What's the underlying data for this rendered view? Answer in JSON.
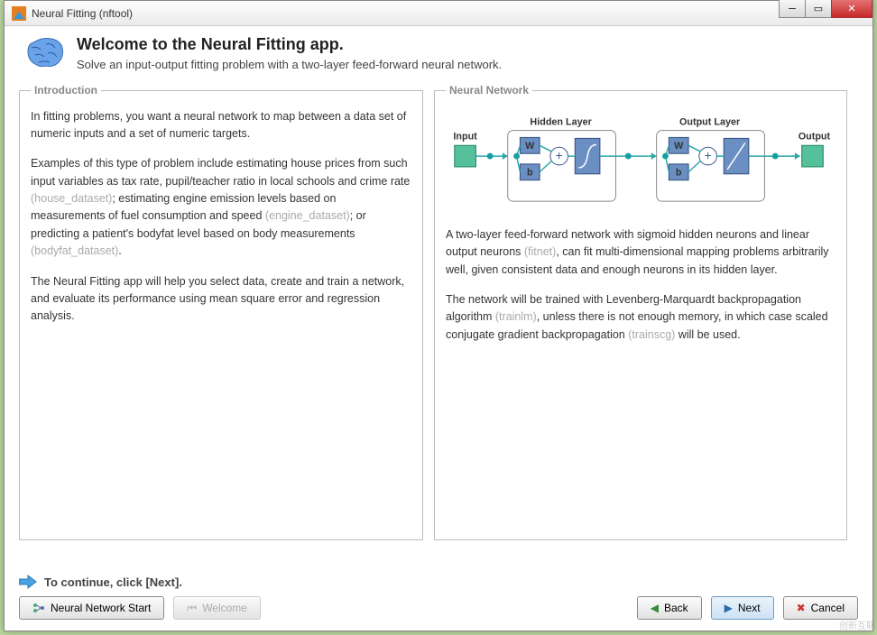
{
  "window": {
    "title": "Neural Fitting (nftool)"
  },
  "header": {
    "title": "Welcome to the Neural Fitting app.",
    "subtitle": "Solve an input-output fitting problem with a two-layer feed-forward neural network."
  },
  "intro": {
    "legend": "Introduction",
    "p1": "In fitting problems, you want a neural network to map between a data set of numeric inputs and a set of numeric targets.",
    "p2a": "Examples of this type of problem include estimating house prices from such input variables as tax rate, pupil/teacher ratio in local schools and crime rate ",
    "p2a_link": "(house_dataset)",
    "p2b": "; estimating engine emission levels based on measurements of fuel consumption and speed ",
    "p2b_link": "(engine_dataset)",
    "p2c": "; or predicting a patient's bodyfat level based on body measurements ",
    "p2c_link": "(bodyfat_dataset)",
    "p2d": ".",
    "p3": "The Neural Fitting app will help you select data, create and train a network, and evaluate its performance using mean square error and regression analysis."
  },
  "nn": {
    "legend": "Neural Network",
    "diagram": {
      "labels": {
        "input": "Input",
        "hidden": "Hidden Layer",
        "output_layer": "Output Layer",
        "output": "Output",
        "W": "W",
        "b": "b"
      },
      "colors": {
        "block_fill": "#6b8fc2",
        "block_stroke": "#3b5a8a",
        "io_fill": "#55c19a",
        "io_stroke": "#2b8f6a",
        "box_stroke": "#888",
        "line": "#2aa8a8",
        "node": "#15a0a0",
        "text": "#333"
      }
    },
    "p1a": "A two-layer feed-forward network with sigmoid hidden neurons and linear output neurons ",
    "p1a_link": "(fitnet)",
    "p1b": ", can fit multi-dimensional mapping problems arbitrarily well, given consistent data and enough neurons in its hidden layer.",
    "p2a": "The network will be trained with Levenberg-Marquardt backpropagation algorithm ",
    "p2a_link": "(trainlm)",
    "p2b": ", unless there is not enough memory, in which case scaled conjugate gradient backpropagation ",
    "p2b_link": "(trainscg)",
    "p2c": " will be used."
  },
  "footer": {
    "hint": "To continue, click [Next].",
    "nn_start": "Neural Network Start",
    "welcome": "Welcome",
    "back": "Back",
    "next": "Next",
    "cancel": "Cancel"
  }
}
